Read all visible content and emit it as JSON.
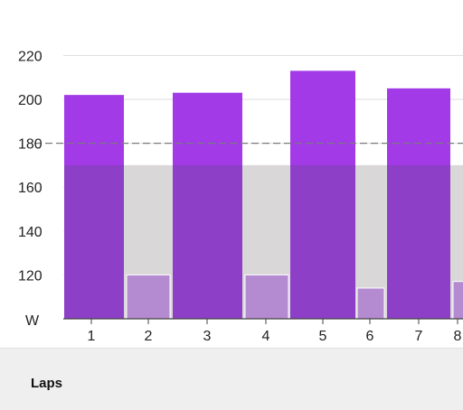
{
  "chart_data": {
    "type": "bar",
    "ylabel": "W",
    "ylim": [
      100,
      230
    ],
    "yticks": [
      120,
      140,
      160,
      180,
      200,
      220
    ],
    "grid": true,
    "categories": [
      "1",
      "2",
      "3",
      "4",
      "5",
      "6",
      "7",
      "8"
    ],
    "values": [
      202,
      120,
      203,
      120,
      213,
      114,
      205,
      117
    ],
    "lap_kind": [
      "work",
      "rest",
      "work",
      "rest",
      "work",
      "rest",
      "work",
      "rest"
    ],
    "reference_line": 180,
    "shaded_band": [
      100,
      170
    ],
    "colors": {
      "work": "#a23ae8",
      "work_in_band": "#8e3fc7",
      "rest": "#b48ad0",
      "band": "#d9d7d7",
      "reference_line": "#7a7a7a",
      "grid": "#dddddd"
    }
  },
  "laps_section": {
    "title": "Laps"
  }
}
